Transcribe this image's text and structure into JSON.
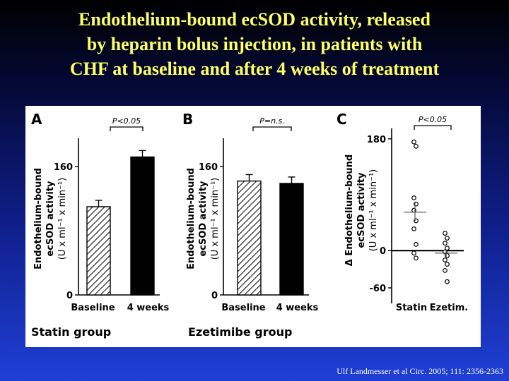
{
  "slide": {
    "title": "Endothelium-bound ecSOD activity, released\nby heparin bolus injection, in patients with\nCHF at baseline and after 4 weeks of treatment",
    "citation": "Ulf Landmesser et al Circ. 2005; 111: 2356-2363"
  },
  "chart_data": [
    {
      "panel": "A",
      "type": "bar",
      "categories": [
        "Baseline",
        "4 weeks"
      ],
      "values": [
        110,
        172
      ],
      "errors": [
        8,
        8
      ],
      "fills": [
        "hatched",
        "#000000"
      ],
      "ylabel_lines": [
        "Endothelium-bound",
        "ecSOD activity",
        "(U x ml⁻¹ x min⁻¹)"
      ],
      "ylim": [
        0,
        190
      ],
      "yticks": [
        0,
        160
      ],
      "group_label": "Statin group",
      "significance": "P<0.05"
    },
    {
      "panel": "B",
      "type": "bar",
      "categories": [
        "Baseline",
        "4 weeks"
      ],
      "values": [
        142,
        139
      ],
      "errors": [
        8,
        8
      ],
      "fills": [
        "hatched",
        "#000000"
      ],
      "ylabel_lines": [
        "Endothelium-bound",
        "ecSOD activity",
        "(U x ml⁻¹ x min⁻¹)"
      ],
      "ylim": [
        0,
        190
      ],
      "yticks": [
        0,
        160
      ],
      "group_label": "Ezetimibe group",
      "significance": "P=n.s."
    },
    {
      "panel": "C",
      "type": "scatter",
      "categories": [
        "Statin",
        "Ezetim."
      ],
      "series": [
        {
          "category": "Statin",
          "points": [
            175,
            168,
            85,
            75,
            65,
            48,
            35,
            10,
            -4,
            -12
          ],
          "mean": 62,
          "sem": 15
        },
        {
          "category": "Ezetim.",
          "points": [
            28,
            20,
            12,
            4,
            -2,
            -8,
            -15,
            -22,
            -32,
            -50
          ],
          "mean": -4,
          "sem": 6
        }
      ],
      "ylabel_lines": [
        "Δ Endothelium-bound",
        "ecSOD activity",
        "(U x ml⁻¹ x min⁻¹)"
      ],
      "ylim": [
        -85,
        190
      ],
      "yticks": [
        -60,
        0,
        180
      ],
      "significance": "P<0.05"
    }
  ]
}
